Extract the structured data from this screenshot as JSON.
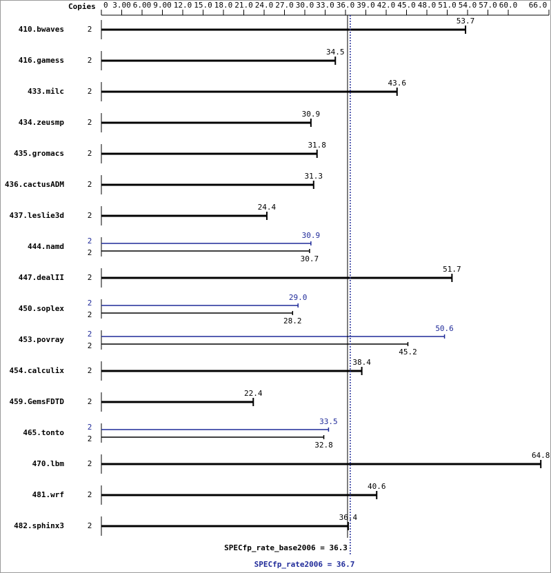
{
  "chart_data": {
    "type": "bar",
    "orientation": "horizontal",
    "copies_header": "Copies",
    "categories": [
      "410.bwaves",
      "416.gamess",
      "433.milc",
      "434.zeusmp",
      "435.gromacs",
      "436.cactusADM",
      "437.leslie3d",
      "444.namd",
      "447.dealII",
      "450.soplex",
      "453.povray",
      "454.calculix",
      "459.GemsFDTD",
      "465.tonto",
      "470.lbm",
      "481.wrf",
      "482.sphinx3"
    ],
    "series": [
      {
        "role": "base",
        "color": "#000000",
        "copies": [
          2,
          2,
          2,
          2,
          2,
          2,
          2,
          2,
          2,
          2,
          2,
          2,
          2,
          2,
          2,
          2,
          2
        ],
        "values": [
          53.7,
          34.5,
          43.6,
          30.9,
          31.8,
          31.3,
          24.4,
          30.7,
          51.7,
          28.2,
          45.2,
          38.4,
          22.4,
          32.8,
          64.8,
          40.6,
          36.4
        ]
      },
      {
        "role": "peak",
        "color": "#1f2a99",
        "copies": [
          null,
          null,
          null,
          null,
          null,
          null,
          null,
          2,
          null,
          2,
          2,
          null,
          null,
          2,
          null,
          null,
          null
        ],
        "values": [
          null,
          null,
          null,
          null,
          null,
          null,
          null,
          30.9,
          null,
          29.0,
          50.6,
          null,
          null,
          33.5,
          null,
          null,
          null
        ],
        "value_labels": [
          null,
          null,
          null,
          null,
          null,
          null,
          null,
          "30.9",
          null,
          "29.0",
          "50.6",
          null,
          null,
          "33.5",
          null,
          null,
          null
        ]
      }
    ],
    "xlim": [
      0,
      66
    ],
    "xticks": [
      0,
      {
        "value": 3,
        "label": "3.00"
      },
      {
        "value": 6,
        "label": "6.00"
      },
      {
        "value": 9,
        "label": "9.00"
      },
      {
        "value": 12,
        "label": "12.0"
      },
      {
        "value": 15,
        "label": "15.0"
      },
      {
        "value": 18,
        "label": "18.0"
      },
      {
        "value": 21,
        "label": "21.0"
      },
      {
        "value": 24,
        "label": "24.0"
      },
      {
        "value": 27,
        "label": "27.0"
      },
      {
        "value": 30,
        "label": "30.0"
      },
      {
        "value": 33,
        "label": "33.0"
      },
      {
        "value": 36,
        "label": "36.0"
      },
      {
        "value": 39,
        "label": "39.0"
      },
      {
        "value": 42,
        "label": "42.0"
      },
      {
        "value": 45,
        "label": "45.0"
      },
      {
        "value": 48,
        "label": "48.0"
      },
      {
        "value": 51,
        "label": "51.0"
      },
      {
        "value": 54,
        "label": "54.0"
      },
      {
        "value": 57,
        "label": "57.0"
      },
      {
        "value": 60,
        "label": "60.0"
      },
      {
        "value": 66,
        "label": "66.0"
      }
    ],
    "reference_lines": [
      {
        "label": "SPECfp_rate_base2006 = 36.3",
        "value": 36.3,
        "color": "#000000",
        "style": "solid"
      },
      {
        "label": "SPECfp_rate2006 = 36.7",
        "value": 36.7,
        "color": "#1f2a99",
        "style": "dotted"
      }
    ]
  }
}
